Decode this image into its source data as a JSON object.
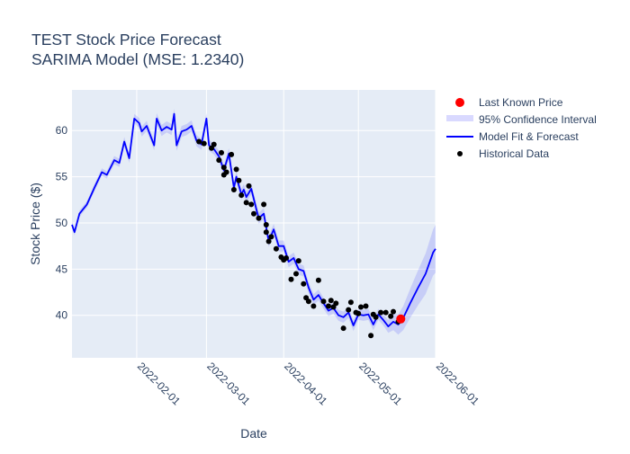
{
  "chart_data": {
    "type": "line",
    "title": "TEST Stock Price Forecast",
    "subtitle": "SARIMA Model (MSE: 1.2340)",
    "xlabel": "Date",
    "ylabel": "Stock Price ($)",
    "x_axis_type": "date",
    "xlim": [
      "2022-01-06",
      "2022-06-01"
    ],
    "ylim": [
      35.4,
      64.4
    ],
    "x_ticks": [
      "2022-02-01",
      "2022-03-01",
      "2022-04-01",
      "2022-05-01",
      "2022-06-01"
    ],
    "y_ticks": [
      40,
      45,
      50,
      55,
      60
    ],
    "grid": true,
    "legend_position": "top-right",
    "legend": [
      "Last Known Price",
      "95% Confidence Interval",
      "Model Fit & Forecast",
      "Historical Data"
    ],
    "colors": {
      "plot_bg": "#e5ecf6",
      "grid": "#ffffff",
      "fit_line": "#0000ff",
      "ci_fill": "rgba(0,0,255,0.13)",
      "historical": "#000000",
      "last_known": "#ff0000",
      "text": "#2a3f5f"
    },
    "series": [
      {
        "name": "Model Fit & Forecast",
        "x": [
          "2022-01-06",
          "2022-01-07",
          "2022-01-09",
          "2022-01-12",
          "2022-01-15",
          "2022-01-18",
          "2022-01-20",
          "2022-01-23",
          "2022-01-25",
          "2022-01-27",
          "2022-01-29",
          "2022-01-31",
          "2022-02-02",
          "2022-02-03",
          "2022-02-05",
          "2022-02-08",
          "2022-02-09",
          "2022-02-11",
          "2022-02-13",
          "2022-02-15",
          "2022-02-16",
          "2022-02-17",
          "2022-02-19",
          "2022-02-21",
          "2022-02-23",
          "2022-02-25",
          "2022-02-27",
          "2022-03-01",
          "2022-03-02",
          "2022-03-04",
          "2022-03-06",
          "2022-03-08",
          "2022-03-10",
          "2022-03-12",
          "2022-03-13",
          "2022-03-15",
          "2022-03-16",
          "2022-03-17",
          "2022-03-19",
          "2022-03-21",
          "2022-03-22",
          "2022-03-24",
          "2022-03-26",
          "2022-03-28",
          "2022-03-30",
          "2022-04-01",
          "2022-04-03",
          "2022-04-05",
          "2022-04-07",
          "2022-04-09",
          "2022-04-11",
          "2022-04-13",
          "2022-04-15",
          "2022-04-17",
          "2022-04-19",
          "2022-04-21",
          "2022-04-23",
          "2022-04-25",
          "2022-04-27",
          "2022-04-29",
          "2022-05-01",
          "2022-05-03",
          "2022-05-05",
          "2022-05-07",
          "2022-05-09",
          "2022-05-11",
          "2022-05-13",
          "2022-05-15",
          "2022-05-17",
          "2022-05-19",
          "2022-05-22",
          "2022-05-25",
          "2022-05-28",
          "2022-05-31",
          "2022-06-01"
        ],
        "values": [
          49.8,
          49.0,
          51.0,
          52.0,
          53.8,
          55.5,
          55.2,
          56.8,
          56.5,
          58.8,
          57.0,
          61.3,
          60.8,
          59.9,
          60.5,
          58.4,
          61.3,
          60.0,
          60.4,
          60.1,
          61.8,
          58.4,
          59.9,
          60.1,
          60.5,
          58.9,
          58.5,
          61.3,
          58.4,
          58.0,
          57.2,
          55.7,
          57.5,
          53.8,
          55.0,
          53.1,
          53.6,
          52.8,
          53.7,
          51.5,
          50.5,
          51.0,
          48.0,
          49.3,
          47.5,
          47.5,
          45.8,
          46.2,
          45.0,
          44.8,
          43.0,
          41.7,
          42.2,
          41.3,
          40.5,
          40.8,
          40.0,
          39.8,
          40.3,
          38.9,
          40.1,
          40.0,
          40.1,
          39.0,
          40.1,
          39.5,
          38.8,
          39.3,
          39.0,
          39.7,
          41.4,
          43.0,
          44.5,
          46.8,
          47.2
        ]
      },
      {
        "name": "Historical Data",
        "x": [
          "2022-02-26",
          "2022-02-28",
          "2022-03-03",
          "2022-03-04",
          "2022-03-06",
          "2022-03-07",
          "2022-03-08",
          "2022-03-08",
          "2022-03-09",
          "2022-03-11",
          "2022-03-12",
          "2022-03-13",
          "2022-03-14",
          "2022-03-15",
          "2022-03-17",
          "2022-03-18",
          "2022-03-19",
          "2022-03-20",
          "2022-03-22",
          "2022-03-24",
          "2022-03-25",
          "2022-03-25",
          "2022-03-26",
          "2022-03-27",
          "2022-03-29",
          "2022-03-31",
          "2022-04-01",
          "2022-04-02",
          "2022-04-04",
          "2022-04-06",
          "2022-04-07",
          "2022-04-09",
          "2022-04-10",
          "2022-04-11",
          "2022-04-13",
          "2022-04-15",
          "2022-04-17",
          "2022-04-19",
          "2022-04-20",
          "2022-04-21",
          "2022-04-22",
          "2022-04-25",
          "2022-04-27",
          "2022-04-28",
          "2022-04-30",
          "2022-05-01",
          "2022-05-02",
          "2022-05-04",
          "2022-05-06",
          "2022-05-07",
          "2022-05-08",
          "2022-05-10",
          "2022-05-12",
          "2022-05-14",
          "2022-05-15",
          "2022-05-17"
        ],
        "values": [
          58.8,
          58.6,
          58.1,
          58.5,
          56.8,
          57.6,
          55.2,
          56.0,
          55.5,
          57.4,
          53.6,
          55.8,
          54.6,
          53.0,
          52.2,
          54.0,
          52.0,
          51.0,
          50.5,
          52.0,
          49.0,
          49.8,
          48.0,
          48.5,
          47.2,
          46.3,
          46.0,
          46.2,
          43.9,
          44.5,
          45.9,
          43.4,
          41.9,
          41.5,
          41.0,
          43.8,
          41.5,
          41.0,
          41.6,
          40.9,
          41.3,
          38.6,
          40.6,
          41.4,
          40.3,
          40.2,
          40.9,
          41.0,
          37.8,
          40.1,
          39.8,
          40.3,
          40.3,
          39.9,
          40.4,
          39.3
        ]
      },
      {
        "name": "Last Known Price",
        "x": [
          "2022-05-18"
        ],
        "values": [
          39.6
        ]
      }
    ],
    "confidence_interval": {
      "name": "95% Confidence Interval",
      "note": "band around Model Fit & Forecast",
      "lower_offset": [
        0.35,
        0.35,
        0.35,
        0.35,
        0.4,
        0.4,
        0.4,
        0.45,
        0.45,
        0.5,
        0.5,
        0.5,
        0.55,
        0.55,
        0.55,
        0.55,
        0.6,
        0.6,
        0.6,
        0.6,
        0.6,
        0.6,
        0.6,
        0.6,
        0.6,
        0.6,
        0.6,
        0.6,
        0.6,
        0.6,
        0.6,
        0.6,
        0.6,
        0.6,
        0.6,
        0.6,
        0.6,
        0.6,
        0.6,
        0.6,
        0.6,
        0.6,
        0.6,
        0.6,
        0.6,
        0.6,
        0.6,
        0.6,
        0.6,
        0.6,
        0.6,
        0.6,
        0.6,
        0.6,
        0.6,
        0.6,
        0.6,
        0.6,
        0.6,
        0.6,
        0.6,
        0.6,
        0.6,
        0.6,
        0.6,
        0.6,
        0.7,
        0.9,
        1.1,
        1.3,
        1.6,
        1.9,
        2.2,
        2.5,
        2.6
      ],
      "upper_offset": [
        0.35,
        0.35,
        0.35,
        0.35,
        0.4,
        0.4,
        0.4,
        0.45,
        0.45,
        0.5,
        0.5,
        0.5,
        0.55,
        0.55,
        0.55,
        0.55,
        0.6,
        0.6,
        0.6,
        0.6,
        0.6,
        0.6,
        0.6,
        0.6,
        0.6,
        0.6,
        0.6,
        0.6,
        0.6,
        0.6,
        0.6,
        0.6,
        0.6,
        0.6,
        0.6,
        0.6,
        0.6,
        0.6,
        0.6,
        0.6,
        0.6,
        0.6,
        0.6,
        0.6,
        0.6,
        0.6,
        0.6,
        0.6,
        0.6,
        0.6,
        0.6,
        0.6,
        0.6,
        0.6,
        0.6,
        0.6,
        0.6,
        0.6,
        0.6,
        0.6,
        0.6,
        0.6,
        0.6,
        0.6,
        0.6,
        0.6,
        0.7,
        0.9,
        1.1,
        1.3,
        1.6,
        1.9,
        2.2,
        2.5,
        2.6
      ]
    }
  }
}
